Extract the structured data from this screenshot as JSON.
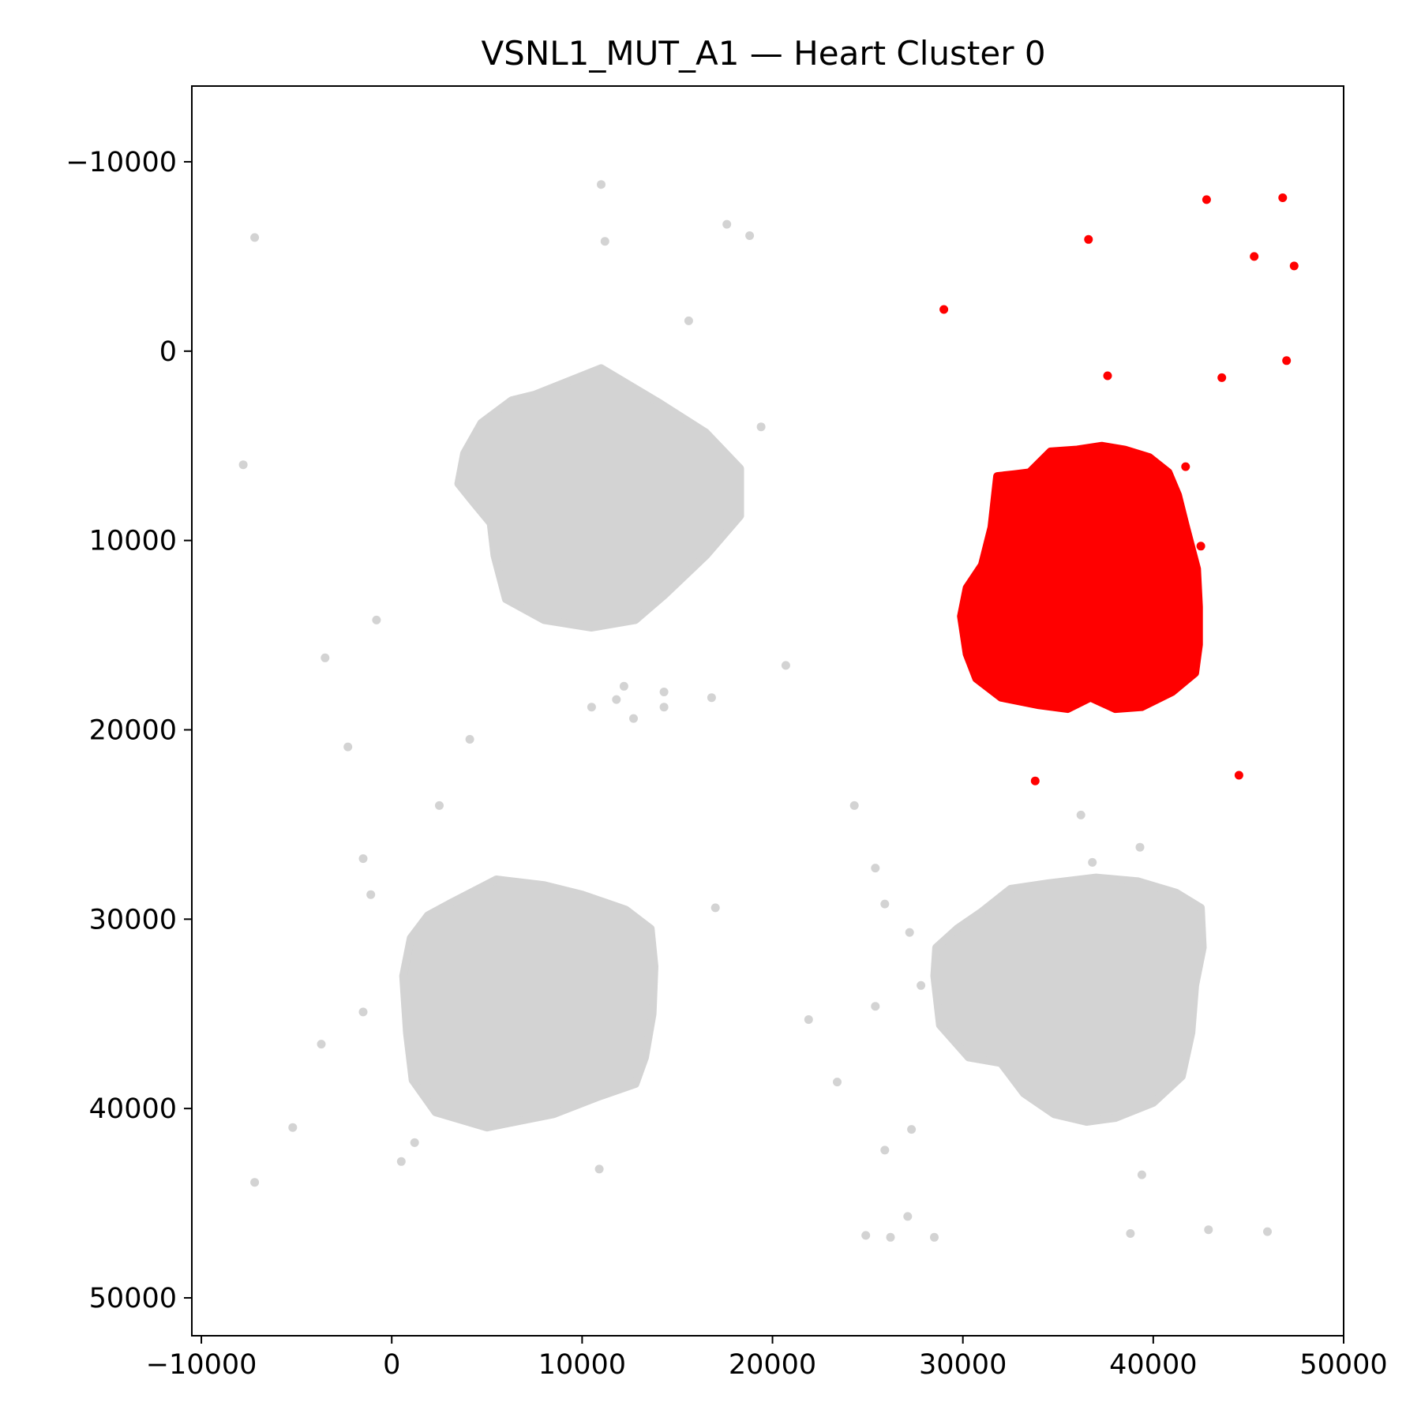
{
  "chart_data": {
    "type": "scatter",
    "title": "VSNL1_MUT_A1 — Heart Cluster 0",
    "xlabel": "",
    "ylabel": "",
    "xlim": [
      -10500,
      50000
    ],
    "ylim": [
      52000,
      -14000
    ],
    "y_inverted": true,
    "grid": false,
    "legend": "none",
    "x_ticks": [
      -10000,
      0,
      10000,
      20000,
      30000,
      40000,
      50000
    ],
    "x_tick_labels": [
      "−10000",
      "0",
      "10000",
      "20000",
      "30000",
      "40000",
      "50000"
    ],
    "y_ticks": [
      -10000,
      0,
      10000,
      20000,
      30000,
      40000,
      50000
    ],
    "y_tick_labels": [
      "−10000",
      "0",
      "10000",
      "20000",
      "30000",
      "40000",
      "50000"
    ],
    "colors": {
      "highlight": "#ff0000",
      "background": "#d3d3d3"
    },
    "series": [
      {
        "color": "#d3d3d3",
        "blobs": [
          {
            "outline": [
              [
                7500,
                2300
              ],
              [
                11000,
                900
              ],
              [
                14000,
                2700
              ],
              [
                16500,
                4300
              ],
              [
                18300,
                6200
              ],
              [
                18300,
                8700
              ],
              [
                16500,
                10800
              ],
              [
                14300,
                12900
              ],
              [
                12800,
                14200
              ],
              [
                10500,
                14600
              ],
              [
                8000,
                14200
              ],
              [
                6000,
                13100
              ],
              [
                5400,
                10800
              ],
              [
                5200,
                9100
              ],
              [
                4300,
                8000
              ],
              [
                3500,
                7000
              ],
              [
                3800,
                5400
              ],
              [
                4700,
                3800
              ],
              [
                6300,
                2600
              ]
            ]
          },
          {
            "outline": [
              [
                3000,
                29200
              ],
              [
                5500,
                27900
              ],
              [
                8000,
                28200
              ],
              [
                10000,
                28700
              ],
              [
                12300,
                29500
              ],
              [
                13600,
                30500
              ],
              [
                13800,
                32500
              ],
              [
                13700,
                35000
              ],
              [
                13300,
                37300
              ],
              [
                12800,
                38700
              ],
              [
                10800,
                39400
              ],
              [
                8500,
                40300
              ],
              [
                5000,
                41000
              ],
              [
                2300,
                40200
              ],
              [
                1100,
                38500
              ],
              [
                800,
                36000
              ],
              [
                600,
                33000
              ],
              [
                1000,
                31000
              ],
              [
                1900,
                29800
              ]
            ]
          },
          {
            "outline": [
              [
                29700,
                30500
              ],
              [
                31000,
                29600
              ],
              [
                32500,
                28400
              ],
              [
                34500,
                28100
              ],
              [
                37000,
                27800
              ],
              [
                39200,
                28000
              ],
              [
                41200,
                28600
              ],
              [
                42500,
                29400
              ],
              [
                42600,
                31500
              ],
              [
                42200,
                33500
              ],
              [
                42000,
                36000
              ],
              [
                41500,
                38300
              ],
              [
                40000,
                39700
              ],
              [
                38000,
                40500
              ],
              [
                36500,
                40700
              ],
              [
                34800,
                40300
              ],
              [
                33200,
                39200
              ],
              [
                32000,
                37600
              ],
              [
                30300,
                37300
              ],
              [
                28800,
                35600
              ],
              [
                28500,
                33000
              ],
              [
                28600,
                31500
              ]
            ]
          }
        ],
        "points": [
          [
            -7200,
            -6000
          ],
          [
            11000,
            -8800
          ],
          [
            11200,
            -5800
          ],
          [
            17600,
            -6700
          ],
          [
            18800,
            -6100
          ],
          [
            15600,
            -1600
          ],
          [
            -7800,
            6000
          ],
          [
            19400,
            4000
          ],
          [
            -800,
            14200
          ],
          [
            -3500,
            16200
          ],
          [
            14900,
            12200
          ],
          [
            20700,
            16600
          ],
          [
            10500,
            18800
          ],
          [
            11800,
            18400
          ],
          [
            12200,
            17700
          ],
          [
            12700,
            19400
          ],
          [
            14300,
            18000
          ],
          [
            14300,
            18800
          ],
          [
            16800,
            18300
          ],
          [
            4100,
            20500
          ],
          [
            -2300,
            20900
          ],
          [
            2500,
            24000
          ],
          [
            -1500,
            26800
          ],
          [
            -1100,
            28700
          ],
          [
            17000,
            29400
          ],
          [
            24300,
            24000
          ],
          [
            25400,
            27300
          ],
          [
            25900,
            29200
          ],
          [
            27200,
            30700
          ],
          [
            27800,
            33500
          ],
          [
            25400,
            34600
          ],
          [
            21900,
            35300
          ],
          [
            23400,
            38600
          ],
          [
            -1500,
            34900
          ],
          [
            -3700,
            36600
          ],
          [
            -5200,
            41000
          ],
          [
            1200,
            41800
          ],
          [
            500,
            42800
          ],
          [
            10900,
            43200
          ],
          [
            -7200,
            43900
          ],
          [
            25900,
            42200
          ],
          [
            27300,
            41100
          ],
          [
            27100,
            45700
          ],
          [
            24900,
            46700
          ],
          [
            26200,
            46800
          ],
          [
            28500,
            46800
          ],
          [
            36200,
            24500
          ],
          [
            39300,
            26200
          ],
          [
            36800,
            27000
          ],
          [
            39400,
            43500
          ],
          [
            38800,
            46600
          ],
          [
            42900,
            46400
          ],
          [
            46000,
            46500
          ]
        ]
      },
      {
        "color": "#ff0000",
        "blobs": [
          {
            "outline": [
              [
                31800,
                6600
              ],
              [
                32700,
                6500
              ],
              [
                33500,
                6400
              ],
              [
                34600,
                5300
              ],
              [
                36000,
                5200
              ],
              [
                37300,
                5000
              ],
              [
                38500,
                5200
              ],
              [
                39800,
                5600
              ],
              [
                40800,
                6400
              ],
              [
                41300,
                7600
              ],
              [
                41700,
                9200
              ],
              [
                42300,
                11500
              ],
              [
                42400,
                13500
              ],
              [
                42400,
                15500
              ],
              [
                42200,
                17000
              ],
              [
                41000,
                18000
              ],
              [
                39400,
                18800
              ],
              [
                38000,
                18900
              ],
              [
                36700,
                18300
              ],
              [
                35500,
                18900
              ],
              [
                34000,
                18700
              ],
              [
                32000,
                18300
              ],
              [
                30700,
                17300
              ],
              [
                30200,
                16000
              ],
              [
                29900,
                14000
              ],
              [
                30200,
                12500
              ],
              [
                31000,
                11300
              ],
              [
                31500,
                9300
              ]
            ]
          }
        ],
        "points": [
          [
            29000,
            -2200
          ],
          [
            36600,
            -5900
          ],
          [
            42800,
            -8000
          ],
          [
            46800,
            -8100
          ],
          [
            45300,
            -5000
          ],
          [
            47400,
            -4500
          ],
          [
            37600,
            1300
          ],
          [
            43600,
            1400
          ],
          [
            47000,
            500
          ],
          [
            41700,
            6100
          ],
          [
            42500,
            10300
          ],
          [
            33800,
            22700
          ],
          [
            44500,
            22400
          ]
        ]
      }
    ]
  }
}
